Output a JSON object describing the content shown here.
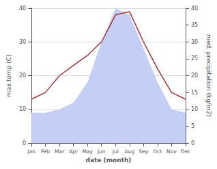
{
  "chart_data": {
    "type": "line",
    "categories": [
      "Jan",
      "Feb",
      "Mar",
      "Apr",
      "May",
      "Jun",
      "Jul",
      "Aug",
      "Sep",
      "Oct",
      "Nov",
      "Dec"
    ],
    "xlabel": "date (month)",
    "ylabel": "max temp (C)",
    "y2label": "med. precipitation (kg/m2)",
    "series": [
      {
        "type": "area",
        "axis": "y2",
        "color": "#c5cef5",
        "values": [
          9,
          9,
          10,
          12,
          18,
          30,
          40,
          38,
          28,
          18,
          10,
          9
        ]
      },
      {
        "type": "line",
        "color": "#b03030",
        "values": [
          13,
          15,
          20,
          23,
          26,
          30,
          38,
          39,
          30,
          22,
          15,
          13
        ]
      }
    ],
    "ylim": [
      0,
      40
    ],
    "yticks": [
      0,
      10,
      20,
      30,
      40
    ],
    "y2lim": [
      0,
      40
    ],
    "y2ticks": [
      0,
      5,
      10,
      15,
      20,
      25,
      30,
      35,
      40
    ],
    "grid": true
  }
}
